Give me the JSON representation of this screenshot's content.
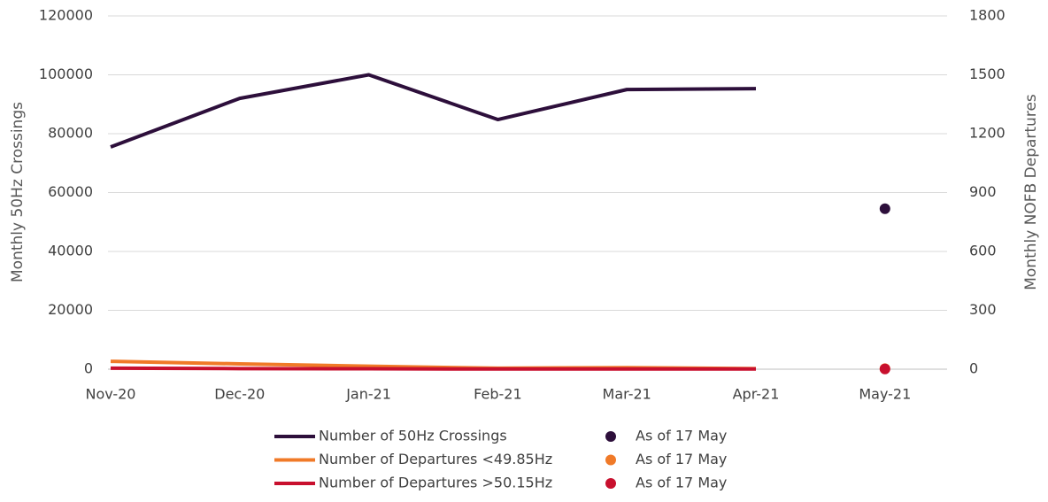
{
  "chart_data": {
    "type": "line",
    "categories": [
      "Nov-20",
      "Dec-20",
      "Jan-21",
      "Feb-21",
      "Mar-21",
      "Apr-21",
      "May-21"
    ],
    "ylabel": "Monthly 50Hz Crossings",
    "y2label": "Monthly NOFB Departures",
    "ylim": [
      0,
      120000
    ],
    "yticks": [
      0,
      20000,
      40000,
      60000,
      80000,
      100000,
      120000
    ],
    "y2lim": [
      0,
      1800
    ],
    "y2ticks": [
      0,
      300,
      600,
      900,
      1200,
      1500,
      1800
    ],
    "grid": true,
    "legend": "bottom",
    "series": [
      {
        "name": "Number of 50Hz Crossings",
        "color": "#2d0f3b",
        "style": "line",
        "values": [
          75500,
          92000,
          100000,
          84800,
          95000,
          95300,
          null
        ]
      },
      {
        "name": "Number of Departures <49.85Hz",
        "color": "#f07a28",
        "style": "line",
        "axis": "y2",
        "values": [
          40,
          27,
          15,
          5,
          8,
          3,
          null
        ]
      },
      {
        "name": "Number of Departures >50.15Hz",
        "color": "#c8102e",
        "style": "line",
        "axis": "y2",
        "values": [
          5,
          3,
          2,
          1,
          1,
          1,
          null
        ]
      },
      {
        "name": "As of 17 May",
        "color": "#2d0f3b",
        "style": "dot",
        "values": [
          null,
          null,
          null,
          null,
          null,
          null,
          54500
        ]
      },
      {
        "name": "As of 17 May",
        "color": "#f07a28",
        "style": "dot",
        "axis": "y2",
        "values": [
          null,
          null,
          null,
          null,
          null,
          null,
          3
        ]
      },
      {
        "name": "As of 17 May",
        "color": "#c8102e",
        "style": "dot",
        "axis": "y2",
        "values": [
          null,
          null,
          null,
          null,
          null,
          null,
          1
        ]
      }
    ]
  }
}
